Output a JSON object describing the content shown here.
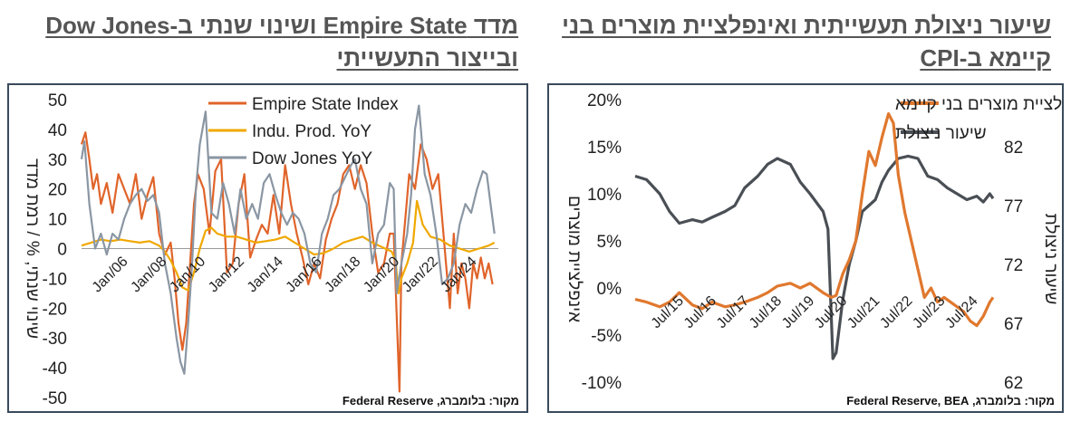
{
  "left_panel": {
    "title": "מדד Empire State ושינוי שנתי ב-Dow Jones ובייצור התעשייתי",
    "source": "מקור: בלומברג, Federal Reserve"
  },
  "right_panel": {
    "title": "שיעור ניצולת תעשייתית ואינפלציית מוצרים בני קיימא ב-CPI",
    "source": "מקור: בלומברג, Federal Reserve, BEA"
  },
  "chart_data": [
    {
      "type": "line",
      "ylabel": "שינוי שנתי, % / רמת מדד",
      "ylim": [
        -50,
        50
      ],
      "yticks": [
        -50,
        -40,
        -30,
        -20,
        -10,
        0,
        10,
        20,
        30,
        40,
        50
      ],
      "xlim": [
        2004.0,
        2025.5
      ],
      "xtick_labels": [
        "Jan/06",
        "Jan/08",
        "Jan/10",
        "Jan/12",
        "Jan/14",
        "Jan/16",
        "Jan/18",
        "Jan/20",
        "Jan/22",
        "Jan/24"
      ],
      "xtick_positions": [
        2006,
        2008,
        2010,
        2012,
        2014,
        2016,
        2018,
        2020,
        2022,
        2024
      ],
      "legend": "top-left",
      "grid": false,
      "series": [
        {
          "name": "Empire State Index",
          "color": "#e0642a",
          "x": [
            2004.0,
            2004.2,
            2004.4,
            2004.6,
            2004.8,
            2005.0,
            2005.3,
            2005.6,
            2005.9,
            2006.2,
            2006.5,
            2006.8,
            2007.1,
            2007.4,
            2007.7,
            2008.0,
            2008.3,
            2008.6,
            2008.8,
            2009.0,
            2009.2,
            2009.4,
            2009.6,
            2009.8,
            2010.0,
            2010.3,
            2010.6,
            2010.9,
            2011.2,
            2011.5,
            2011.8,
            2012.1,
            2012.4,
            2012.7,
            2013.0,
            2013.3,
            2013.6,
            2013.9,
            2014.2,
            2014.5,
            2014.8,
            2015.1,
            2015.4,
            2015.7,
            2016.0,
            2016.3,
            2016.6,
            2016.9,
            2017.2,
            2017.5,
            2017.8,
            2018.1,
            2018.4,
            2018.7,
            2019.0,
            2019.3,
            2019.6,
            2019.9,
            2020.1,
            2020.3,
            2020.4,
            2020.5,
            2020.7,
            2020.9,
            2021.2,
            2021.5,
            2021.8,
            2022.1,
            2022.4,
            2022.6,
            2022.8,
            2023.0,
            2023.2,
            2023.4,
            2023.6,
            2023.8,
            2024.0,
            2024.2,
            2024.4,
            2024.6,
            2024.8,
            2025.0,
            2025.2
          ],
          "y": [
            35,
            39,
            30,
            20,
            25,
            15,
            22,
            12,
            25,
            20,
            15,
            25,
            10,
            18,
            24,
            5,
            -2,
            2,
            -10,
            -25,
            -34,
            -25,
            -5,
            15,
            25,
            20,
            5,
            26,
            30,
            -8,
            -5,
            15,
            25,
            -3,
            3,
            8,
            5,
            18,
            5,
            28,
            15,
            5,
            -3,
            -12,
            -5,
            -10,
            3,
            10,
            15,
            25,
            28,
            20,
            28,
            22,
            5,
            -8,
            -5,
            5,
            5,
            -30,
            -48,
            -5,
            10,
            25,
            20,
            35,
            30,
            20,
            25,
            10,
            -5,
            -20,
            5,
            -15,
            -5,
            -10,
            -20,
            -5,
            -10,
            -3,
            -10,
            -5,
            -12
          ]
        },
        {
          "name": "Indu. Prod. YoY",
          "color": "#f0a800",
          "x": [
            2004.0,
            2004.5,
            2005.0,
            2005.5,
            2006.0,
            2006.5,
            2007.0,
            2007.5,
            2008.0,
            2008.3,
            2008.6,
            2008.9,
            2009.2,
            2009.5,
            2009.8,
            2010.1,
            2010.4,
            2010.7,
            2011.0,
            2011.5,
            2012.0,
            2012.5,
            2013.0,
            2013.5,
            2014.0,
            2014.5,
            2015.0,
            2015.5,
            2016.0,
            2016.5,
            2017.0,
            2017.5,
            2018.0,
            2018.5,
            2019.0,
            2019.5,
            2020.0,
            2020.2,
            2020.35,
            2020.5,
            2020.8,
            2021.1,
            2021.3,
            2021.6,
            2022.0,
            2022.5,
            2023.0,
            2023.5,
            2024.0,
            2024.5,
            2025.0,
            2025.3
          ],
          "y": [
            1,
            2,
            3,
            2.5,
            3,
            2.5,
            2,
            2.5,
            1,
            -1,
            -4,
            -8,
            -13,
            -14,
            -8,
            0,
            6,
            7,
            5,
            4,
            4,
            3,
            2,
            2.5,
            3,
            4,
            2,
            0,
            -2,
            -1.5,
            0,
            2,
            3,
            4,
            2,
            0.5,
            -1,
            -4,
            -15,
            -10,
            -5,
            2,
            16,
            8,
            4,
            3,
            1,
            0,
            -1,
            0,
            1,
            2
          ]
        },
        {
          "name": "Dow Jones YoY",
          "color": "#8a96a3",
          "x": [
            2004.0,
            2004.15,
            2004.4,
            2004.7,
            2005.0,
            2005.3,
            2005.6,
            2005.9,
            2006.2,
            2006.5,
            2006.8,
            2007.1,
            2007.4,
            2007.7,
            2008.0,
            2008.3,
            2008.6,
            2008.9,
            2009.1,
            2009.3,
            2009.5,
            2009.7,
            2009.9,
            2010.1,
            2010.4,
            2010.7,
            2011.0,
            2011.3,
            2011.6,
            2011.9,
            2012.2,
            2012.5,
            2012.8,
            2013.1,
            2013.4,
            2013.7,
            2014.0,
            2014.3,
            2014.6,
            2014.9,
            2015.2,
            2015.5,
            2015.8,
            2016.1,
            2016.4,
            2016.7,
            2017.0,
            2017.3,
            2017.6,
            2017.9,
            2018.1,
            2018.4,
            2018.7,
            2019.0,
            2019.3,
            2019.6,
            2019.9,
            2020.1,
            2020.25,
            2020.5,
            2020.8,
            2021.0,
            2021.2,
            2021.4,
            2021.7,
            2022.0,
            2022.3,
            2022.6,
            2022.9,
            2023.2,
            2023.5,
            2023.8,
            2024.1,
            2024.4,
            2024.7,
            2024.9,
            2025.1,
            2025.3
          ],
          "y": [
            30,
            36,
            15,
            0,
            5,
            -2,
            5,
            3,
            10,
            15,
            18,
            20,
            16,
            18,
            12,
            -5,
            -15,
            -30,
            -38,
            -42,
            -25,
            -5,
            20,
            35,
            46,
            12,
            10,
            22,
            15,
            5,
            20,
            10,
            15,
            10,
            22,
            25,
            18,
            12,
            8,
            12,
            10,
            5,
            -5,
            -8,
            5,
            10,
            18,
            20,
            24,
            28,
            30,
            20,
            15,
            -5,
            5,
            8,
            22,
            20,
            -15,
            -5,
            5,
            18,
            40,
            48,
            25,
            18,
            5,
            -12,
            -10,
            -5,
            8,
            15,
            12,
            20,
            26,
            25,
            15,
            5
          ]
        }
      ]
    },
    {
      "type": "line",
      "ylabel": "אינפלציית מוצרים",
      "y2label": "שיעור ניצולת",
      "ylim": [
        -10,
        20
      ],
      "yticks": [
        -10,
        -5,
        0,
        5,
        10,
        15,
        20
      ],
      "ytick_labels": [
        "-10%",
        "-5%",
        "0%",
        "5%",
        "10%",
        "15%",
        "20%"
      ],
      "y2lim": [
        62,
        86
      ],
      "y2ticks": [
        62,
        67,
        72,
        77,
        82
      ],
      "xlim": [
        2014.25,
        2025.2
      ],
      "xtick_labels": [
        "Jul/15",
        "Jul/16",
        "Jul/17",
        "Jul/18",
        "Jul/19",
        "Jul/20",
        "Jul/21",
        "Jul/22",
        "Jul/23",
        "Jul/24"
      ],
      "xtick_positions": [
        2015.5,
        2016.5,
        2017.5,
        2018.5,
        2019.5,
        2020.5,
        2021.5,
        2022.5,
        2023.5,
        2024.5
      ],
      "legend": "top-center",
      "grid": false,
      "series": [
        {
          "name": "אינפלציית מוצרים בני קיימא",
          "color": "#e0782e",
          "axis": "left",
          "x": [
            2014.25,
            2014.6,
            2015.0,
            2015.3,
            2015.6,
            2016.0,
            2016.3,
            2016.6,
            2017.0,
            2017.3,
            2017.6,
            2018.0,
            2018.3,
            2018.6,
            2019.0,
            2019.3,
            2019.6,
            2020.0,
            2020.25,
            2020.4,
            2020.6,
            2020.8,
            2021.0,
            2021.2,
            2021.4,
            2021.6,
            2021.8,
            2022.0,
            2022.15,
            2022.3,
            2022.5,
            2022.7,
            2022.9,
            2023.1,
            2023.3,
            2023.5,
            2023.7,
            2023.9,
            2024.1,
            2024.3,
            2024.5,
            2024.7,
            2024.9,
            2025.1,
            2025.2
          ],
          "y": [
            -1.2,
            -1.5,
            -2,
            -1.5,
            -0.5,
            -1.8,
            -2.2,
            -1.5,
            -2.0,
            -1.8,
            -1.5,
            -1.0,
            -0.5,
            0.2,
            0.5,
            0,
            0.5,
            -0.5,
            -1.0,
            -0.8,
            1.5,
            3.0,
            5.0,
            10.0,
            14.5,
            13.0,
            16.0,
            18.5,
            17.5,
            12.0,
            8.0,
            5.0,
            2.0,
            -1.0,
            0,
            -1.5,
            -1.0,
            -1.5,
            -2.0,
            -2.5,
            -3.5,
            -4.0,
            -3.0,
            -1.5,
            -1.0
          ]
        },
        {
          "name": "שיעור ניצולת",
          "color": "#4a4f55",
          "axis": "right",
          "x": [
            2014.25,
            2014.6,
            2015.0,
            2015.3,
            2015.6,
            2016.0,
            2016.3,
            2016.6,
            2017.0,
            2017.3,
            2017.6,
            2018.0,
            2018.3,
            2018.6,
            2019.0,
            2019.3,
            2019.6,
            2020.0,
            2020.15,
            2020.3,
            2020.4,
            2020.6,
            2020.8,
            2021.0,
            2021.2,
            2021.4,
            2021.6,
            2021.8,
            2022.0,
            2022.3,
            2022.6,
            2022.9,
            2023.2,
            2023.5,
            2023.8,
            2024.1,
            2024.4,
            2024.7,
            2024.9,
            2025.1,
            2025.2
          ],
          "y": [
            79.5,
            79.2,
            78,
            76.5,
            75.5,
            75.8,
            75.6,
            76,
            76.5,
            77,
            78.5,
            79.5,
            80.5,
            81,
            80.5,
            79,
            78,
            76.5,
            75,
            64,
            64.5,
            69,
            72,
            74,
            76.5,
            77,
            77.5,
            79,
            80,
            81,
            81.2,
            81,
            79.5,
            79.2,
            78.5,
            78,
            77.5,
            77.8,
            77.3,
            78,
            77.6
          ]
        }
      ]
    }
  ]
}
